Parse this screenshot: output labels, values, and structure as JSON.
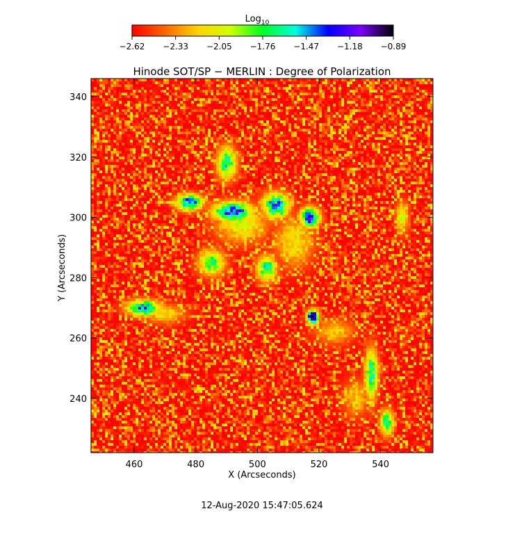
{
  "chart_data": {
    "type": "heatmap",
    "title": "Hinode SOT/SP − MERLIN : Degree of Polarization",
    "xlabel": "X (Arcseconds)",
    "ylabel": "Y (Arcseconds)",
    "xlim": [
      446,
      557
    ],
    "ylim": [
      222,
      346
    ],
    "x_ticks": [
      460,
      480,
      500,
      520,
      540
    ],
    "y_ticks": [
      240,
      260,
      280,
      300,
      320,
      340
    ],
    "colorbar": {
      "label": "Log",
      "label_subscript": "10",
      "range": [
        -2.62,
        -0.89
      ],
      "ticks": [
        "−2.62",
        "−2.33",
        "−2.05",
        "−1.76",
        "−1.47",
        "−1.18",
        "−0.89"
      ],
      "colormap": [
        "#ff0000",
        "#ff6600",
        "#ffd200",
        "#d2ff00",
        "#00ff22",
        "#00ffdc",
        "#0000ff",
        "#7a00ff",
        "#000000"
      ]
    },
    "high_polarization_regions": [
      {
        "x": 492,
        "y": 302,
        "dx": 6,
        "dy": 3,
        "log10": -1.2
      },
      {
        "x": 478,
        "y": 305,
        "dx": 4,
        "dy": 2.5,
        "log10": -1.3
      },
      {
        "x": 506,
        "y": 304,
        "dx": 4,
        "dy": 4,
        "log10": -1.35
      },
      {
        "x": 517,
        "y": 300,
        "dx": 3,
        "dy": 3,
        "log10": -1.2
      },
      {
        "x": 463,
        "y": 270,
        "dx": 5,
        "dy": 2.5,
        "log10": -1.4
      },
      {
        "x": 490,
        "y": 318,
        "dx": 3,
        "dy": 5,
        "log10": -1.6
      },
      {
        "x": 485,
        "y": 285,
        "dx": 4,
        "dy": 4,
        "log10": -1.7
      },
      {
        "x": 503,
        "y": 283,
        "dx": 3,
        "dy": 4,
        "log10": -1.6
      },
      {
        "x": 518,
        "y": 267,
        "dx": 1.8,
        "dy": 2.2,
        "log10": -0.9
      },
      {
        "x": 537,
        "y": 248,
        "dx": 2,
        "dy": 8,
        "log10": -1.6
      },
      {
        "x": 542,
        "y": 232,
        "dx": 2,
        "dy": 4,
        "log10": -1.6
      },
      {
        "x": 547,
        "y": 300,
        "dx": 2,
        "dy": 5,
        "log10": -2.0
      },
      {
        "x": 495,
        "y": 298,
        "dx": 8,
        "dy": 6,
        "log10": -2.0
      },
      {
        "x": 512,
        "y": 292,
        "dx": 6,
        "dy": 8,
        "log10": -2.1
      },
      {
        "x": 470,
        "y": 268,
        "dx": 6,
        "dy": 3,
        "log10": -2.1
      },
      {
        "x": 525,
        "y": 262,
        "dx": 6,
        "dy": 4,
        "log10": -2.2
      },
      {
        "x": 532,
        "y": 240,
        "dx": 4,
        "dy": 6,
        "log10": -2.2
      }
    ]
  },
  "footer": {
    "timestamp": "12-Aug-2020 15:47:05.624"
  }
}
